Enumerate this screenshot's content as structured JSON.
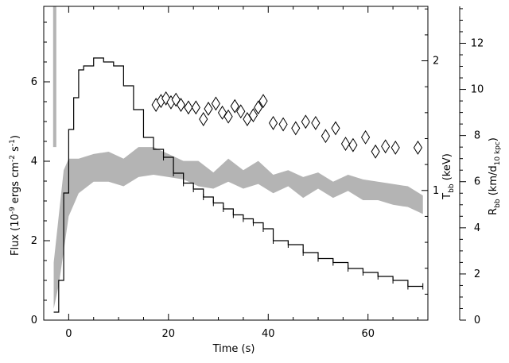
{
  "chart_data": {
    "type": "line",
    "xlabel": "Time (s)",
    "ylabel_left": {
      "main": "Flux (10",
      "sup1": "-9",
      "mid": " ergs cm",
      "sup2": "-2",
      "mid2": " s",
      "sup3": "-1",
      "end": ")"
    },
    "ylabel_right1": {
      "main": "T",
      "sub": "bb",
      "end": " (keV)"
    },
    "ylabel_right2": {
      "main": "R",
      "sub": "bb",
      "mid": " (km/d",
      "sub2": "10 kpc",
      "end": ")"
    },
    "xlim": [
      -5,
      72
    ],
    "ylim_flux": [
      0,
      7.9
    ],
    "ylim_temp": [
      0,
      2.42
    ],
    "ylim_radius": [
      0,
      13.6
    ],
    "x_ticks": [
      0,
      20,
      40,
      60
    ],
    "y_ticks_flux": [
      0,
      2,
      4,
      6
    ],
    "y_ticks_temp": [
      1,
      2
    ],
    "y_ticks_radius": [
      0,
      2,
      4,
      6,
      8,
      10,
      12
    ],
    "flux_series": [
      {
        "x": -3.0,
        "y": 0.2
      },
      {
        "x": -2.0,
        "y": 1.0
      },
      {
        "x": -1.0,
        "y": 3.2
      },
      {
        "x": 0.0,
        "y": 4.8
      },
      {
        "x": 1.0,
        "y": 5.6
      },
      {
        "x": 2.0,
        "y": 6.3
      },
      {
        "x": 3.0,
        "y": 6.4
      },
      {
        "x": 5.0,
        "y": 6.6
      },
      {
        "x": 7.0,
        "y": 6.5
      },
      {
        "x": 9.0,
        "y": 6.4
      },
      {
        "x": 11.0,
        "y": 5.9
      },
      {
        "x": 13.0,
        "y": 5.3
      },
      {
        "x": 15.0,
        "y": 4.6
      },
      {
        "x": 17.0,
        "y": 4.3
      },
      {
        "x": 19.0,
        "y": 4.1
      },
      {
        "x": 21.0,
        "y": 3.7
      },
      {
        "x": 23.0,
        "y": 3.45
      },
      {
        "x": 25.0,
        "y": 3.3
      },
      {
        "x": 27.0,
        "y": 3.1
      },
      {
        "x": 29.0,
        "y": 2.95
      },
      {
        "x": 31.0,
        "y": 2.8
      },
      {
        "x": 33.0,
        "y": 2.65
      },
      {
        "x": 35.0,
        "y": 2.55
      },
      {
        "x": 37.0,
        "y": 2.45
      },
      {
        "x": 39.0,
        "y": 2.3
      },
      {
        "x": 41.0,
        "y": 2.0
      },
      {
        "x": 44.0,
        "y": 1.9
      },
      {
        "x": 47.0,
        "y": 1.7
      },
      {
        "x": 50.0,
        "y": 1.55
      },
      {
        "x": 53.0,
        "y": 1.45
      },
      {
        "x": 56.0,
        "y": 1.3
      },
      {
        "x": 59.0,
        "y": 1.2
      },
      {
        "x": 62.0,
        "y": 1.1
      },
      {
        "x": 65.0,
        "y": 1.0
      },
      {
        "x": 68.0,
        "y": 0.85
      },
      {
        "x": 71.0,
        "y": 0.85
      }
    ],
    "radius_band": [
      {
        "x": -3.0,
        "lo": 0.5,
        "hi": 2.5
      },
      {
        "x": -2.0,
        "lo": 1.5,
        "hi": 4.5
      },
      {
        "x": -1.0,
        "lo": 3.0,
        "hi": 6.5
      },
      {
        "x": 0.0,
        "lo": 4.5,
        "hi": 7.0
      },
      {
        "x": 2.0,
        "lo": 5.5,
        "hi": 7.0
      },
      {
        "x": 5.0,
        "lo": 6.0,
        "hi": 7.2
      },
      {
        "x": 8.0,
        "lo": 6.0,
        "hi": 7.3
      },
      {
        "x": 11.0,
        "lo": 5.8,
        "hi": 7.0
      },
      {
        "x": 14.0,
        "lo": 6.2,
        "hi": 7.5
      },
      {
        "x": 17.0,
        "lo": 6.3,
        "hi": 7.5
      },
      {
        "x": 20.0,
        "lo": 6.2,
        "hi": 7.2
      },
      {
        "x": 23.0,
        "lo": 6.1,
        "hi": 6.9
      },
      {
        "x": 26.0,
        "lo": 5.8,
        "hi": 6.9
      },
      {
        "x": 29.0,
        "lo": 5.7,
        "hi": 6.4
      },
      {
        "x": 32.0,
        "lo": 6.0,
        "hi": 7.0
      },
      {
        "x": 35.0,
        "lo": 5.7,
        "hi": 6.5
      },
      {
        "x": 38.0,
        "lo": 5.9,
        "hi": 6.9
      },
      {
        "x": 41.0,
        "lo": 5.5,
        "hi": 6.3
      },
      {
        "x": 44.0,
        "lo": 5.8,
        "hi": 6.5
      },
      {
        "x": 47.0,
        "lo": 5.3,
        "hi": 6.2
      },
      {
        "x": 50.0,
        "lo": 5.7,
        "hi": 6.4
      },
      {
        "x": 53.0,
        "lo": 5.3,
        "hi": 6.0
      },
      {
        "x": 56.0,
        "lo": 5.6,
        "hi": 6.3
      },
      {
        "x": 59.0,
        "lo": 5.2,
        "hi": 6.1
      },
      {
        "x": 62.0,
        "lo": 5.2,
        "hi": 6.0
      },
      {
        "x": 65.0,
        "lo": 5.0,
        "hi": 5.9
      },
      {
        "x": 68.0,
        "lo": 4.9,
        "hi": 5.8
      },
      {
        "x": 71.0,
        "lo": 4.6,
        "hi": 5.4
      }
    ],
    "temperature_points": [
      {
        "x": 17.5,
        "y": 1.66
      },
      {
        "x": 18.5,
        "y": 1.69
      },
      {
        "x": 19.5,
        "y": 1.71
      },
      {
        "x": 20.5,
        "y": 1.68
      },
      {
        "x": 21.5,
        "y": 1.7
      },
      {
        "x": 22.5,
        "y": 1.66
      },
      {
        "x": 24.0,
        "y": 1.64
      },
      {
        "x": 25.5,
        "y": 1.64
      },
      {
        "x": 27.0,
        "y": 1.55
      },
      {
        "x": 28.0,
        "y": 1.63
      },
      {
        "x": 29.5,
        "y": 1.67
      },
      {
        "x": 30.8,
        "y": 1.6
      },
      {
        "x": 32.0,
        "y": 1.57
      },
      {
        "x": 33.3,
        "y": 1.65
      },
      {
        "x": 34.5,
        "y": 1.61
      },
      {
        "x": 35.8,
        "y": 1.55
      },
      {
        "x": 37.0,
        "y": 1.58
      },
      {
        "x": 38.0,
        "y": 1.64
      },
      {
        "x": 39.0,
        "y": 1.69
      },
      {
        "x": 41.0,
        "y": 1.52
      },
      {
        "x": 43.0,
        "y": 1.51
      },
      {
        "x": 45.5,
        "y": 1.48
      },
      {
        "x": 47.5,
        "y": 1.53
      },
      {
        "x": 49.5,
        "y": 1.52
      },
      {
        "x": 51.5,
        "y": 1.42
      },
      {
        "x": 53.5,
        "y": 1.48
      },
      {
        "x": 55.5,
        "y": 1.36
      },
      {
        "x": 57.0,
        "y": 1.35
      },
      {
        "x": 59.5,
        "y": 1.41
      },
      {
        "x": 61.5,
        "y": 1.3
      },
      {
        "x": 63.5,
        "y": 1.34
      },
      {
        "x": 65.5,
        "y": 1.33
      },
      {
        "x": 70.0,
        "y": 1.33
      }
    ],
    "colors": {
      "flux": "#000000",
      "radius_band": "#b4b4b4",
      "temperature": "#000000",
      "axes": "#000000"
    }
  }
}
